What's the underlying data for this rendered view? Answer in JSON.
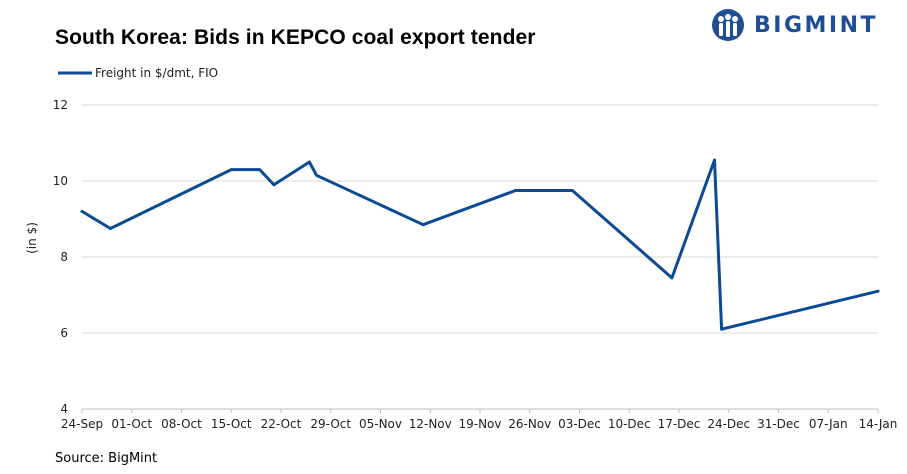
{
  "header": {
    "title": "South Korea: Bids in KEPCO coal export tender",
    "logo_text": "BIGMINT",
    "logo_icon": "bigmint-people-icon"
  },
  "footer": {
    "source": "Source: BigMint"
  },
  "colors": {
    "series": "#0c4a96",
    "brand": "#1f4e96",
    "grid": "#d9d9d9"
  },
  "chart_data": {
    "type": "line",
    "title": "South Korea: Bids in KEPCO coal export tender",
    "ylabel": "(in $)",
    "xlabel": "",
    "ylim": [
      4,
      12
    ],
    "yticks": [
      4,
      6,
      8,
      10,
      12
    ],
    "grid": true,
    "legend_position": "top-left",
    "x_ticks": [
      "24-Sep",
      "01-Oct",
      "08-Oct",
      "15-Oct",
      "22-Oct",
      "29-Oct",
      "05-Nov",
      "12-Nov",
      "19-Nov",
      "26-Nov",
      "03-Dec",
      "10-Dec",
      "17-Dec",
      "24-Dec",
      "31-Dec",
      "07-Jan",
      "14-Jan"
    ],
    "series": [
      {
        "name": "Freight in $/dmt, FIO",
        "points": [
          {
            "x": "24-Sep",
            "y": 9.2
          },
          {
            "x": "28-Sep",
            "y": 8.75
          },
          {
            "x": "15-Oct",
            "y": 10.3
          },
          {
            "x": "19-Oct",
            "y": 10.3
          },
          {
            "x": "21-Oct",
            "y": 9.9
          },
          {
            "x": "26-Oct",
            "y": 10.5
          },
          {
            "x": "27-Oct",
            "y": 10.15
          },
          {
            "x": "11-Nov",
            "y": 8.85
          },
          {
            "x": "24-Nov",
            "y": 9.75
          },
          {
            "x": "02-Dec",
            "y": 9.75
          },
          {
            "x": "16-Dec",
            "y": 7.45
          },
          {
            "x": "22-Dec",
            "y": 10.55
          },
          {
            "x": "23-Dec",
            "y": 6.1
          },
          {
            "x": "14-Jan",
            "y": 7.1
          }
        ]
      }
    ]
  }
}
